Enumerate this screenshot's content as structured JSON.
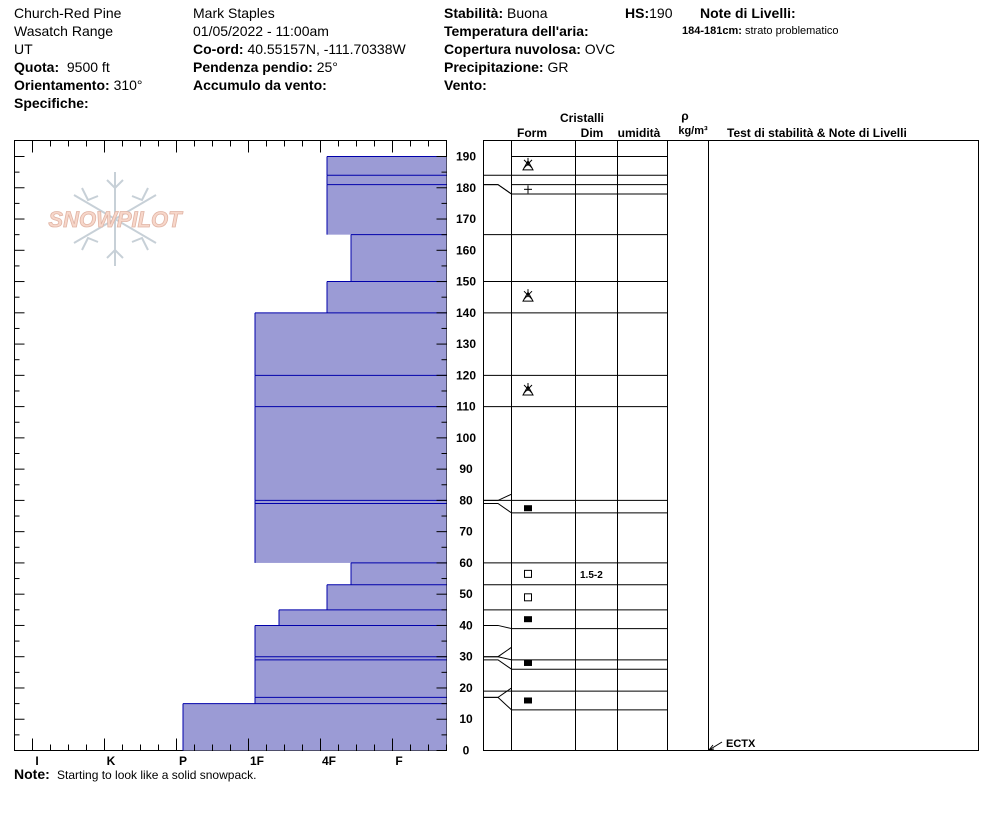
{
  "header": {
    "col1": {
      "location": "Church-Red Pine",
      "range": "Wasatch Range",
      "state": "UT",
      "quota_label": "Quota:",
      "quota_value": "9500 ft",
      "orient_label": "Orientamento:",
      "orient_value": "310°",
      "specifiche_label": "Specifiche:"
    },
    "col2": {
      "observer": "Mark Staples",
      "datetime": "01/05/2022 - 11:00am",
      "coord_label": "Co-ord:",
      "coord_value": "40.55157N, -111.70338W",
      "pendenza_label": "Pendenza pendio:",
      "pendenza_value": "25°",
      "accumulo_label": "Accumulo da vento:"
    },
    "col3": {
      "stabilita_label": "Stabilità:",
      "stabilita_value": "Buona",
      "temp_label": "Temperatura dell'aria:",
      "copertura_label": "Copertura nuvolosa:",
      "copertura_value": "OVC",
      "precip_label": "Precipitazione:",
      "precip_value": "GR",
      "vento_label": "Vento:"
    },
    "hs_label": "HS:",
    "hs_value": "190",
    "note_livelli_label": "Note di Livelli:",
    "note_livelli_item_range": "184-181cm:",
    "note_livelli_item_text": "strato problematico"
  },
  "logo_text": "SNOWPILOT",
  "columns": {
    "cristalli": "Cristalli",
    "form": "Form",
    "dim": "Dim",
    "umidita": "umidità",
    "rho": "ρ",
    "density_unit": "kg/m³",
    "stability": "Test di stabilità & Note di Livelli"
  },
  "note": {
    "label": "Note:",
    "text": "Starting to look like a solid snowpack."
  },
  "stability_test": "ECTX",
  "chart_data": {
    "type": "bar",
    "title": "",
    "xlabel": "",
    "ylabel": "",
    "ylim": [
      0,
      190
    ],
    "y_ticks": [
      0,
      10,
      20,
      30,
      40,
      50,
      60,
      70,
      80,
      90,
      100,
      110,
      120,
      130,
      140,
      150,
      160,
      170,
      180,
      190
    ],
    "hardness_scale": [
      "I",
      "K",
      "P",
      "1F",
      "4F",
      "F"
    ],
    "bar_color": "#9b9bd5",
    "layer_line_color": "#0000aa",
    "layers": [
      {
        "top": 190,
        "bottom": 184,
        "hardness": "4F"
      },
      {
        "top": 184,
        "bottom": 181,
        "hardness": "4F"
      },
      {
        "top": 181,
        "bottom": 165,
        "hardness": "4F"
      },
      {
        "top": 165,
        "bottom": 150,
        "hardness": "4F-"
      },
      {
        "top": 150,
        "bottom": 140,
        "hardness": "4F"
      },
      {
        "top": 140,
        "bottom": 120,
        "hardness": "1F"
      },
      {
        "top": 120,
        "bottom": 110,
        "hardness": "1F"
      },
      {
        "top": 110,
        "bottom": 80,
        "hardness": "1F"
      },
      {
        "top": 80,
        "bottom": 79,
        "hardness": "1F"
      },
      {
        "top": 79,
        "bottom": 60,
        "hardness": "1F"
      },
      {
        "top": 60,
        "bottom": 53,
        "hardness": "4F-"
      },
      {
        "top": 53,
        "bottom": 45,
        "hardness": "4F"
      },
      {
        "top": 45,
        "bottom": 40,
        "hardness": "1F-"
      },
      {
        "top": 40,
        "bottom": 30,
        "hardness": "1F"
      },
      {
        "top": 30,
        "bottom": 29,
        "hardness": "1F"
      },
      {
        "top": 29,
        "bottom": 17,
        "hardness": "1F"
      },
      {
        "top": 17,
        "bottom": 15,
        "hardness": "1F"
      },
      {
        "top": 15,
        "bottom": 0,
        "hardness": "P"
      }
    ],
    "grain_layers": [
      {
        "top": 190,
        "bottom": 184,
        "form": "precip"
      },
      {
        "top": 181,
        "bottom": 178,
        "form": "plus"
      },
      {
        "top": 150,
        "bottom": 140,
        "form": "precip"
      },
      {
        "top": 120,
        "bottom": 110,
        "form": "precip"
      },
      {
        "top": 79,
        "bottom": 76,
        "form": "rounded"
      },
      {
        "top": 60,
        "bottom": 53,
        "form": "faceted",
        "dim": "1.5-2"
      },
      {
        "top": 53,
        "bottom": 45,
        "form": "faceted"
      },
      {
        "top": 45,
        "bottom": 39,
        "form": "rounded"
      },
      {
        "top": 30,
        "bottom": 26,
        "form": "rounded"
      },
      {
        "top": 19,
        "bottom": 13,
        "form": "rounded"
      }
    ],
    "table_boundaries": [
      190,
      184,
      181,
      178,
      165,
      150,
      140,
      120,
      110,
      80,
      76,
      60,
      53,
      45,
      39,
      29,
      26,
      19,
      13
    ],
    "stability_test_depth": 0
  }
}
